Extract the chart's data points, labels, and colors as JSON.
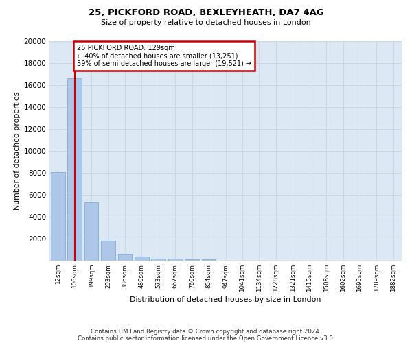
{
  "title1": "25, PICKFORD ROAD, BEXLEYHEATH, DA7 4AG",
  "title2": "Size of property relative to detached houses in London",
  "xlabel": "Distribution of detached houses by size in London",
  "ylabel": "Number of detached properties",
  "bin_labels": [
    "12sqm",
    "106sqm",
    "199sqm",
    "293sqm",
    "386sqm",
    "480sqm",
    "573sqm",
    "667sqm",
    "760sqm",
    "854sqm",
    "947sqm",
    "1041sqm",
    "1134sqm",
    "1228sqm",
    "1321sqm",
    "1415sqm",
    "1508sqm",
    "1602sqm",
    "1695sqm",
    "1789sqm",
    "1882sqm"
  ],
  "bar_heights": [
    8050,
    16600,
    5300,
    1800,
    650,
    350,
    200,
    160,
    130,
    140,
    0,
    0,
    0,
    0,
    0,
    0,
    0,
    0,
    0,
    0,
    0
  ],
  "bar_color": "#aec6e8",
  "bar_edge_color": "#7aafd4",
  "grid_color": "#c8d8e8",
  "background_color": "#dce8f4",
  "vline_x": 1,
  "vline_color": "#cc0000",
  "annotation_text": "25 PICKFORD ROAD: 129sqm\n← 40% of detached houses are smaller (13,251)\n59% of semi-detached houses are larger (19,521) →",
  "annotation_box_color": "#cc0000",
  "ylim": [
    0,
    20000
  ],
  "yticks": [
    0,
    2000,
    4000,
    6000,
    8000,
    10000,
    12000,
    14000,
    16000,
    18000,
    20000
  ],
  "footnote1": "Contains HM Land Registry data © Crown copyright and database right 2024.",
  "footnote2": "Contains public sector information licensed under the Open Government Licence v3.0."
}
